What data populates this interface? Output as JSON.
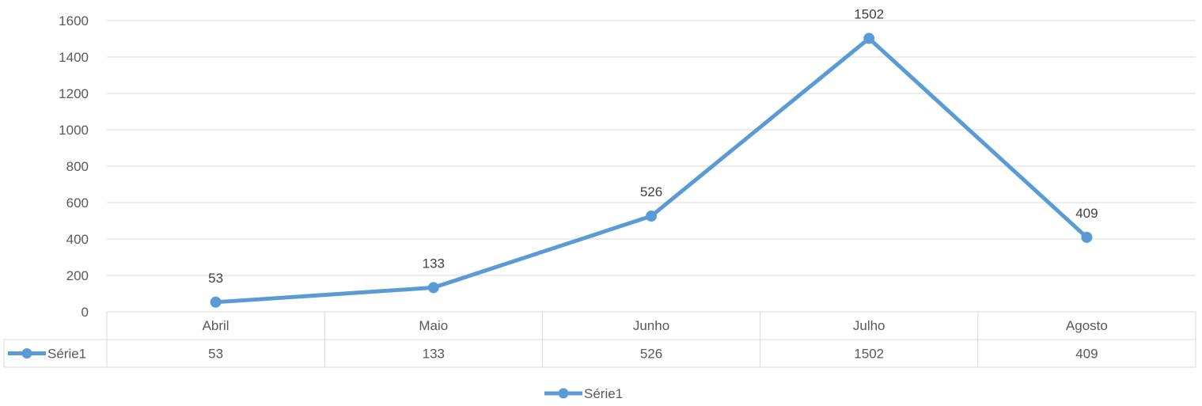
{
  "chart_data": {
    "type": "line",
    "categories": [
      "Abril",
      "Maio",
      "Junho",
      "Julho",
      "Agosto"
    ],
    "series": [
      {
        "name": "Série1",
        "values": [
          53,
          133,
          526,
          1502,
          409
        ],
        "color": "#5B9BD5"
      }
    ],
    "ylim": [
      0,
      1600
    ],
    "yticks": [
      0,
      200,
      400,
      600,
      800,
      1000,
      1200,
      1400,
      1600
    ],
    "grid": true,
    "data_labels": true,
    "data_table": true,
    "legend": "bottom"
  }
}
